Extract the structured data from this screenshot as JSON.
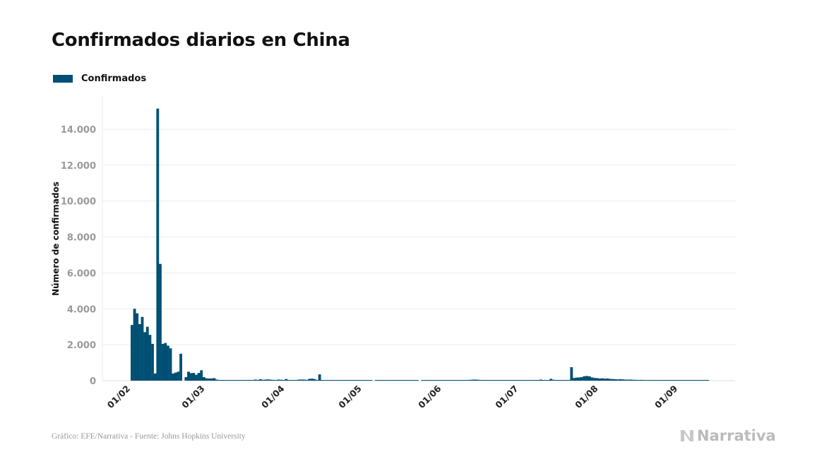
{
  "chart_data": {
    "type": "bar",
    "title": "Confirmados diarios en China",
    "xlabel": "",
    "ylabel": "Número de confirmados",
    "ylim": [
      0,
      14000
    ],
    "yticks": [
      0,
      2000,
      4000,
      6000,
      8000,
      10000,
      12000,
      14000
    ],
    "ytick_labels": [
      "0",
      "2.000",
      "4.000",
      "6.000",
      "8.000",
      "10.000",
      "12.000",
      "14.000"
    ],
    "xtick_labels": [
      "01/02",
      "01/03",
      "01/04",
      "01/05",
      "01/06",
      "01/07",
      "01/08",
      "01/09"
    ],
    "grid": true,
    "legend": "top-left",
    "color": "#004f74",
    "series": [
      {
        "name": "Confirmados",
        "months": [
          {
            "month": "02",
            "values": [
              3100,
              4000,
              3750,
              3150,
              3550,
              2700,
              3000,
              2550,
              2050,
              400,
              15150,
              6500,
              2050,
              2100,
              1950,
              1800,
              400,
              450,
              500,
              1500,
              0,
              200,
              500,
              420,
              430,
              330,
              430,
              580,
              200
            ]
          },
          {
            "month": "03",
            "values": [
              130,
              120,
              125,
              140,
              60,
              40,
              30,
              20,
              25,
              15,
              15,
              10,
              20,
              20,
              25,
              15,
              40,
              40,
              40,
              60,
              45,
              80,
              50,
              60,
              70,
              55,
              45,
              30,
              60,
              50,
              35
            ]
          },
          {
            "month": "04",
            "values": [
              90,
              35,
              30,
              40,
              35,
              60,
              60,
              60,
              45,
              100,
              110,
              90,
              45,
              350,
              30,
              30,
              20,
              15,
              10,
              15,
              12,
              15,
              20,
              10,
              5,
              3,
              20,
              5,
              2,
              4
            ]
          },
          {
            "month": "05",
            "values": [
              2,
              1,
              3,
              2,
              0,
              4,
              1,
              3,
              2,
              14,
              1,
              7,
              3,
              4,
              8,
              5,
              2,
              6,
              3,
              2,
              1,
              3,
              0,
              11,
              7,
              3,
              2,
              5,
              2,
              1,
              2
            ]
          },
          {
            "month": "06",
            "values": [
              5,
              3,
              5,
              2,
              5,
              4,
              6,
              3,
              5,
              4,
              3,
              50,
              60,
              55,
              45,
              40,
              35,
              30,
              25,
              25,
              20,
              20,
              30,
              20,
              20,
              25,
              15,
              20,
              20,
              15
            ]
          },
          {
            "month": "07",
            "values": [
              10,
              10,
              10,
              8,
              10,
              8,
              10,
              12,
              60,
              15,
              10,
              12,
              100,
              50,
              15,
              20,
              20,
              15,
              20,
              20,
              750,
              150,
              170,
              180,
              200,
              250,
              260,
              240,
              180,
              150,
              140
            ]
          },
          {
            "month": "08",
            "values": [
              120,
              130,
              110,
              120,
              100,
              90,
              80,
              70,
              80,
              70,
              60,
              55,
              60,
              50,
              45,
              40,
              45,
              40,
              35,
              30,
              30,
              25,
              25,
              30,
              25,
              20,
              20,
              20,
              20,
              20,
              20
            ]
          },
          {
            "month": "09",
            "values": [
              15,
              20,
              15,
              15,
              15,
              15,
              15,
              15,
              10,
              10,
              10,
              10
            ]
          }
        ]
      }
    ]
  },
  "source": "Gráfico: EFE/Narrativa - Fuente: Johns Hopkins University",
  "brand": "Narrativa"
}
